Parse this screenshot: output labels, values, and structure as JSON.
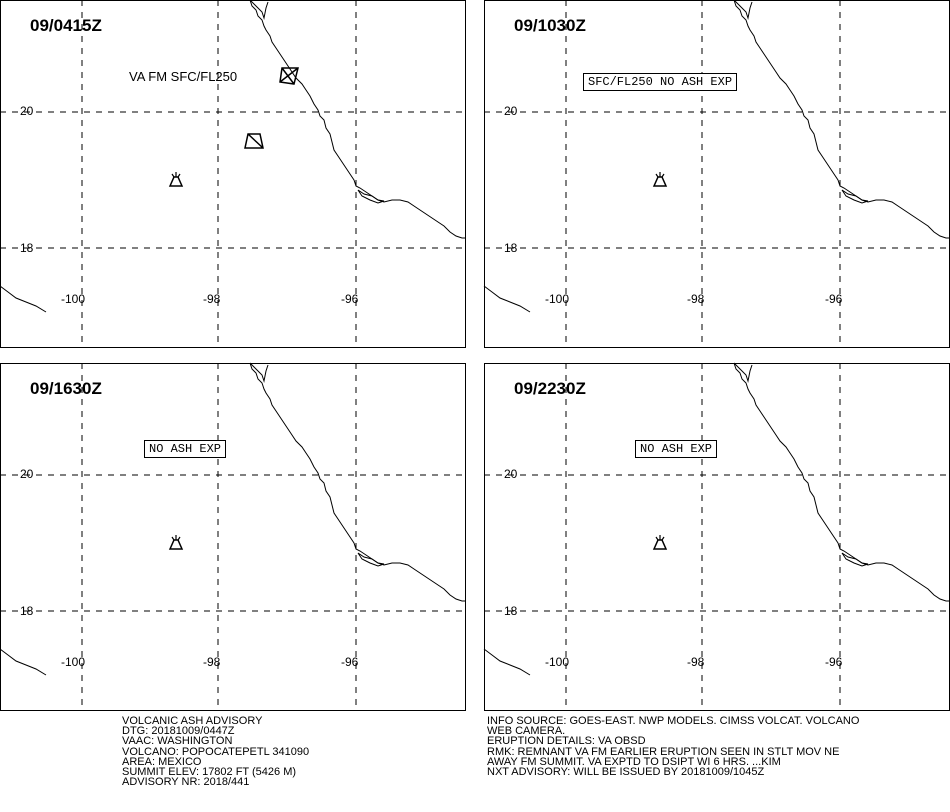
{
  "panels": [
    {
      "time": "09/0415Z",
      "label": "VA FM SFC/FL250",
      "label_style": "plain"
    },
    {
      "time": "09/1030Z",
      "label": "SFC/FL250 NO ASH EXP",
      "label_style": "boxed"
    },
    {
      "time": "09/1630Z",
      "label": "NO ASH EXP",
      "label_style": "boxed"
    },
    {
      "time": "09/2230Z",
      "label": "NO ASH EXP",
      "label_style": "boxed"
    }
  ],
  "lat_labels": [
    "20",
    "18"
  ],
  "lon_labels": [
    "-100",
    "-98",
    "-96"
  ],
  "advisory_left": [
    "VOLCANIC ASH ADVISORY",
    "DTG: 20181009/0447Z",
    "VAAC: WASHINGTON",
    "VOLCANO: POPOCATEPETL 341090",
    "AREA: MEXICO",
    "SUMMIT ELEV: 17802 FT (5426 M)",
    "ADVISORY NR: 2018/441"
  ],
  "advisory_right": [
    "INFO SOURCE: GOES-EAST. NWP MODELS. CIMSS VOLCAT. VOLCANO",
    "WEB CAMERA.",
    "ERUPTION DETAILS: VA OBSD",
    "RMK: REMNANT VA FM EARLIER ERUPTION SEEN IN STLT MOV NE",
    "AWAY FM SUMMIT. VA EXPTD TO DSIPT WI 6 HRS. ...KIM",
    "NXT ADVISORY: WILL BE ISSUED BY 20181009/1045Z"
  ],
  "icons": {
    "volcano": "volcano-icon",
    "ash_area": "ash-polygon"
  }
}
